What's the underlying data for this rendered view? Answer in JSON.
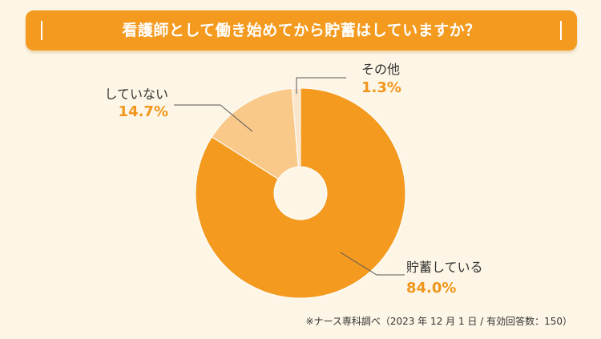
{
  "title": "看護師として働き始めてから貯蓄はしていますか？",
  "source_note": "※ナース専科調べ（2023 年 12 月 1 日 / 有効回答数：150）",
  "colors": {
    "accent": "#f39a1f",
    "background": "#fdf6e6"
  },
  "chart_data": {
    "type": "pie",
    "donut": true,
    "start": "top",
    "direction": "clockwise",
    "slices": [
      {
        "label": "貯蓄している",
        "value": 84.0,
        "value_label": "84.0%",
        "color": "#f39a1f"
      },
      {
        "label": "していない",
        "value": 14.7,
        "value_label": "14.7%",
        "color": "#f9c98a"
      },
      {
        "label": "その他",
        "value": 1.3,
        "value_label": "1.3%",
        "color": "#fbe6cb"
      }
    ]
  }
}
